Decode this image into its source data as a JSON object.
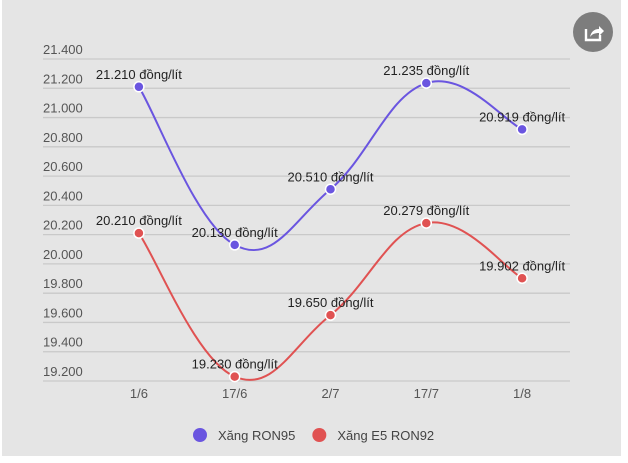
{
  "chart_data": {
    "type": "line",
    "categories": [
      "1/6",
      "17/6",
      "2/7",
      "17/7",
      "1/8"
    ],
    "series": [
      {
        "name": "Xăng RON95",
        "color": "#6a55e0",
        "values": [
          21210,
          20130,
          20510,
          21235,
          20919
        ],
        "labels": [
          "21.210 đồng/lít",
          "20.130 đồng/lít",
          "20.510 đồng/lít",
          "21.235 đồng/lít",
          "20.919 đồng/lít"
        ]
      },
      {
        "name": "Xăng E5 RON92",
        "color": "#e05252",
        "values": [
          20210,
          19230,
          19650,
          20279,
          19902
        ],
        "labels": [
          "20.210 đồng/lít",
          "19.230 đồng/lít",
          "19.650 đồng/lít",
          "20.279 đồng/lít",
          "19.902 đồng/lít"
        ]
      }
    ],
    "yticks": [
      "19.200",
      "19.400",
      "19.600",
      "19.800",
      "20.000",
      "20.200",
      "20.400",
      "20.600",
      "20.800",
      "21.000",
      "21.200",
      "21.400"
    ],
    "ylim": [
      19200,
      21400
    ],
    "grid": true,
    "smooth": true,
    "legend": "bottom-center"
  },
  "toolbar": {
    "share_icon": "share-icon"
  }
}
